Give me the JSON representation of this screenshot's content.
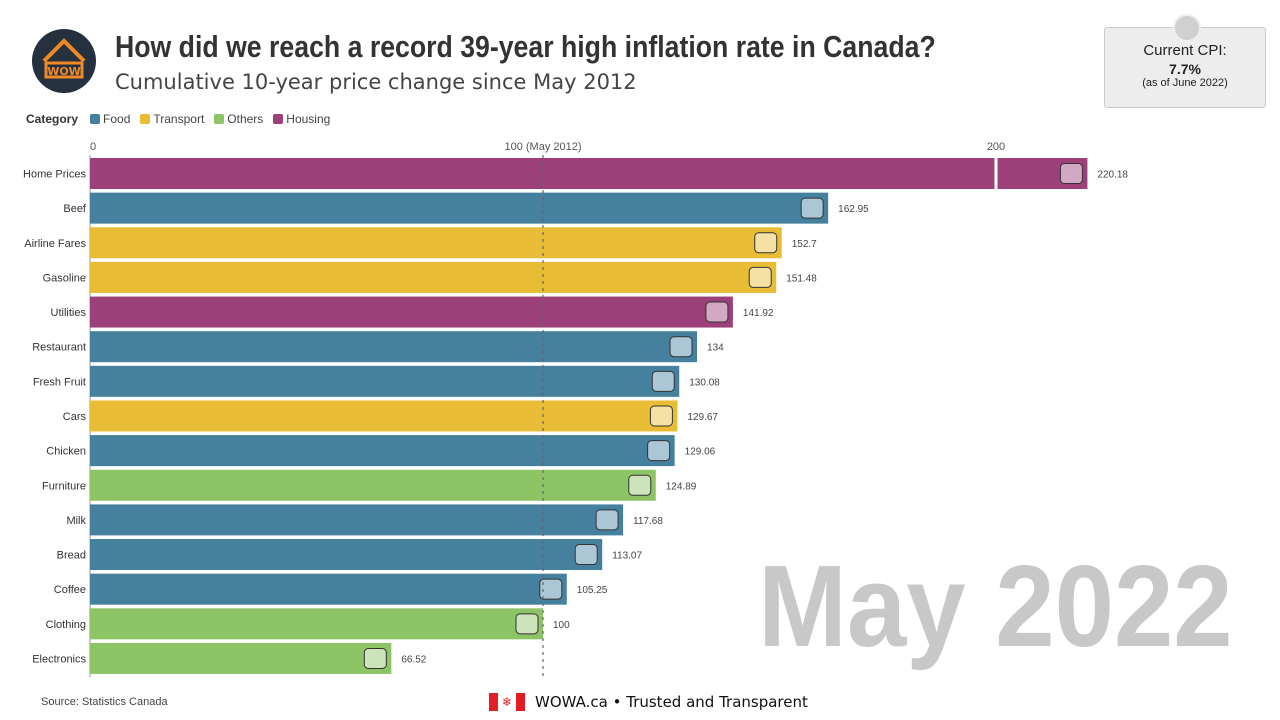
{
  "header": {
    "title": "How did we reach a record 39-year high inflation rate in Canada?",
    "subtitle": "Cumulative 10-year price change since May 2012",
    "logo_text": "WOW"
  },
  "cpi_box": {
    "label": "Current CPI:",
    "value": "7.7%",
    "note": "(as of June 2022)"
  },
  "legend": {
    "title": "Category",
    "items": [
      {
        "label": "Food",
        "color": "#45809f"
      },
      {
        "label": "Transport",
        "color": "#e8bd35"
      },
      {
        "label": "Others",
        "color": "#8cc466"
      },
      {
        "label": "Housing",
        "color": "#9b4079"
      }
    ]
  },
  "chart_data": {
    "type": "bar",
    "orientation": "horizontal",
    "xlim": [
      0,
      220.18
    ],
    "ticks": [
      {
        "value": 0,
        "label": "0"
      },
      {
        "value": 100,
        "label": "100 (May 2012)"
      },
      {
        "value": 200,
        "label": "200"
      }
    ],
    "reference_line": 100,
    "categories": [
      "Home Prices",
      "Beef",
      "Airline Fares",
      "Gasoline",
      "Utilities",
      "Restaurant",
      "Fresh Fruit",
      "Cars",
      "Chicken",
      "Furniture",
      "Milk",
      "Bread",
      "Coffee",
      "Clothing",
      "Electronics"
    ],
    "values": [
      220.18,
      162.95,
      152.7,
      151.48,
      141.92,
      134,
      130.08,
      129.67,
      129.06,
      124.89,
      117.68,
      113.07,
      105.25,
      100,
      66.52
    ],
    "value_labels": [
      "220.18",
      "162.95",
      "152.7",
      "151.48",
      "141.92",
      "134",
      "130.08",
      "129.67",
      "129.06",
      "124.89",
      "117.68",
      "113.07",
      "105.25",
      "100",
      "66.52"
    ],
    "groups": [
      "Housing",
      "Food",
      "Transport",
      "Transport",
      "Housing",
      "Food",
      "Food",
      "Transport",
      "Food",
      "Others",
      "Food",
      "Food",
      "Food",
      "Others",
      "Others"
    ],
    "icons": [
      "house-icon",
      "cow-icon",
      "airplane-icon",
      "fuel-pump-icon",
      "utilities-icon",
      "fork-spoon-icon",
      "fruit-icon",
      "car-icon",
      "roast-chicken-icon",
      "furniture-icon",
      "milk-icon",
      "bread-icon",
      "coffee-cup-icon",
      "shirt-icon",
      "electronics-icon"
    ],
    "period": "May 2022"
  },
  "footer": {
    "source": "Source: Statistics Canada",
    "brand": "WOWA.ca • Trusted and Transparent"
  }
}
